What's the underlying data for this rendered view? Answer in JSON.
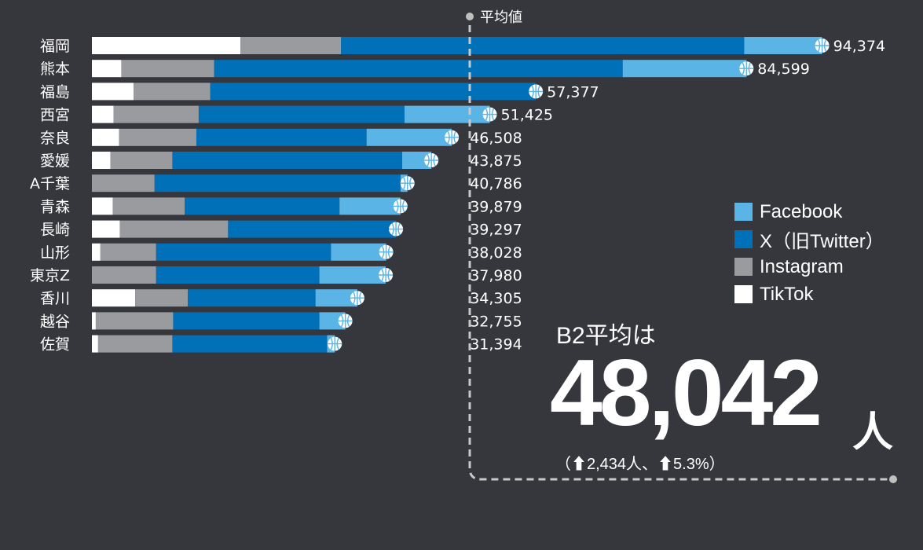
{
  "chart_data": {
    "type": "bar",
    "orientation": "horizontal",
    "stacked": true,
    "title": "",
    "xlabel": "",
    "ylabel": "",
    "categories": [
      "福岡",
      "熊本",
      "福島",
      "西宮",
      "奈良",
      "愛媛",
      "A千葉",
      "青森",
      "長崎",
      "山形",
      "東京Z",
      "香川",
      "越谷",
      "佐賀"
    ],
    "series": [
      {
        "name": "TikTok",
        "color": "#ffffff",
        "values": [
          19200,
          3800,
          5400,
          2800,
          3500,
          2400,
          0,
          2700,
          3600,
          1100,
          0,
          5600,
          500,
          800
        ]
      },
      {
        "name": "Instagram",
        "color": "#9a9b9f",
        "values": [
          13000,
          12000,
          9900,
          11000,
          10000,
          8000,
          8100,
          9300,
          14000,
          7200,
          8300,
          6800,
          10000,
          9600
        ]
      },
      {
        "name": "X（旧Twitter）",
        "color": "#0070b8",
        "values": [
          52100,
          52800,
          42077,
          26600,
          22000,
          29700,
          31786,
          20000,
          21697,
          22600,
          21100,
          16500,
          18900,
          19994
        ]
      },
      {
        "name": "Facebook",
        "color": "#5ab4e6",
        "values": [
          10074,
          15999,
          0,
          11025,
          11008,
          3775,
          900,
          7879,
          0,
          7128,
          8580,
          5405,
          3355,
          1000
        ]
      }
    ],
    "totals": [
      "94,374",
      "84,599",
      "57,377",
      "51,425",
      "46,508",
      "43,875",
      "40,786",
      "39,879",
      "39,297",
      "38,028",
      "37,980",
      "34,305",
      "32,755",
      "31,394"
    ],
    "reference_line": {
      "label": "平均値",
      "value": 48042
    },
    "xlim": [
      0,
      100000
    ],
    "legend": {
      "position": "right",
      "order": [
        "Facebook",
        "X（旧Twitter）",
        "Instagram",
        "TikTok"
      ]
    }
  },
  "summary": {
    "title": "B2平均は",
    "value": "48,042",
    "unit": "人",
    "change": "（⬆2,434人、⬆5.3%）"
  }
}
